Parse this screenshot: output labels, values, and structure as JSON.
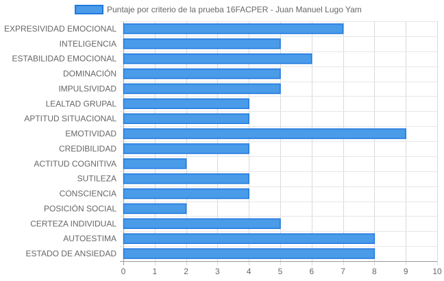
{
  "chart_data": {
    "type": "bar",
    "orientation": "horizontal",
    "title": "",
    "xlabel": "",
    "ylabel": "",
    "xlim": [
      0,
      10
    ],
    "x_ticks": [
      0,
      1,
      2,
      3,
      4,
      5,
      6,
      7,
      8,
      9,
      10
    ],
    "grid": true,
    "legend_position": "top",
    "categories": [
      "EXPRESIVIDAD EMOCIONAL",
      "INTELIGENCIA",
      "ESTABILIDAD EMOCIONAL",
      "DOMINACIÓN",
      "IMPULSIVIDAD",
      "LEALTAD GRUPAL",
      "APTITUD SITUACIONAL",
      "EMOTIVIDAD",
      "CREDIBILIDAD",
      "ACTITUD COGNITIVA",
      "SUTILEZA",
      "CONSCIENCIA",
      "POSICIÓN SOCIAL",
      "CERTEZA INDIVIDUAL",
      "AUTOESTIMA",
      "ESTADO DE ANSIEDAD"
    ],
    "series": [
      {
        "name": "Puntaje por criterio de la prueba 16FACPER - Juan Manuel Lugo Yam",
        "values": [
          7,
          5,
          6,
          5,
          5,
          4,
          4,
          9,
          4,
          2,
          4,
          4,
          2,
          5,
          8,
          8
        ],
        "color": "#4a9be8",
        "border_color": "#1f78e0"
      }
    ]
  }
}
